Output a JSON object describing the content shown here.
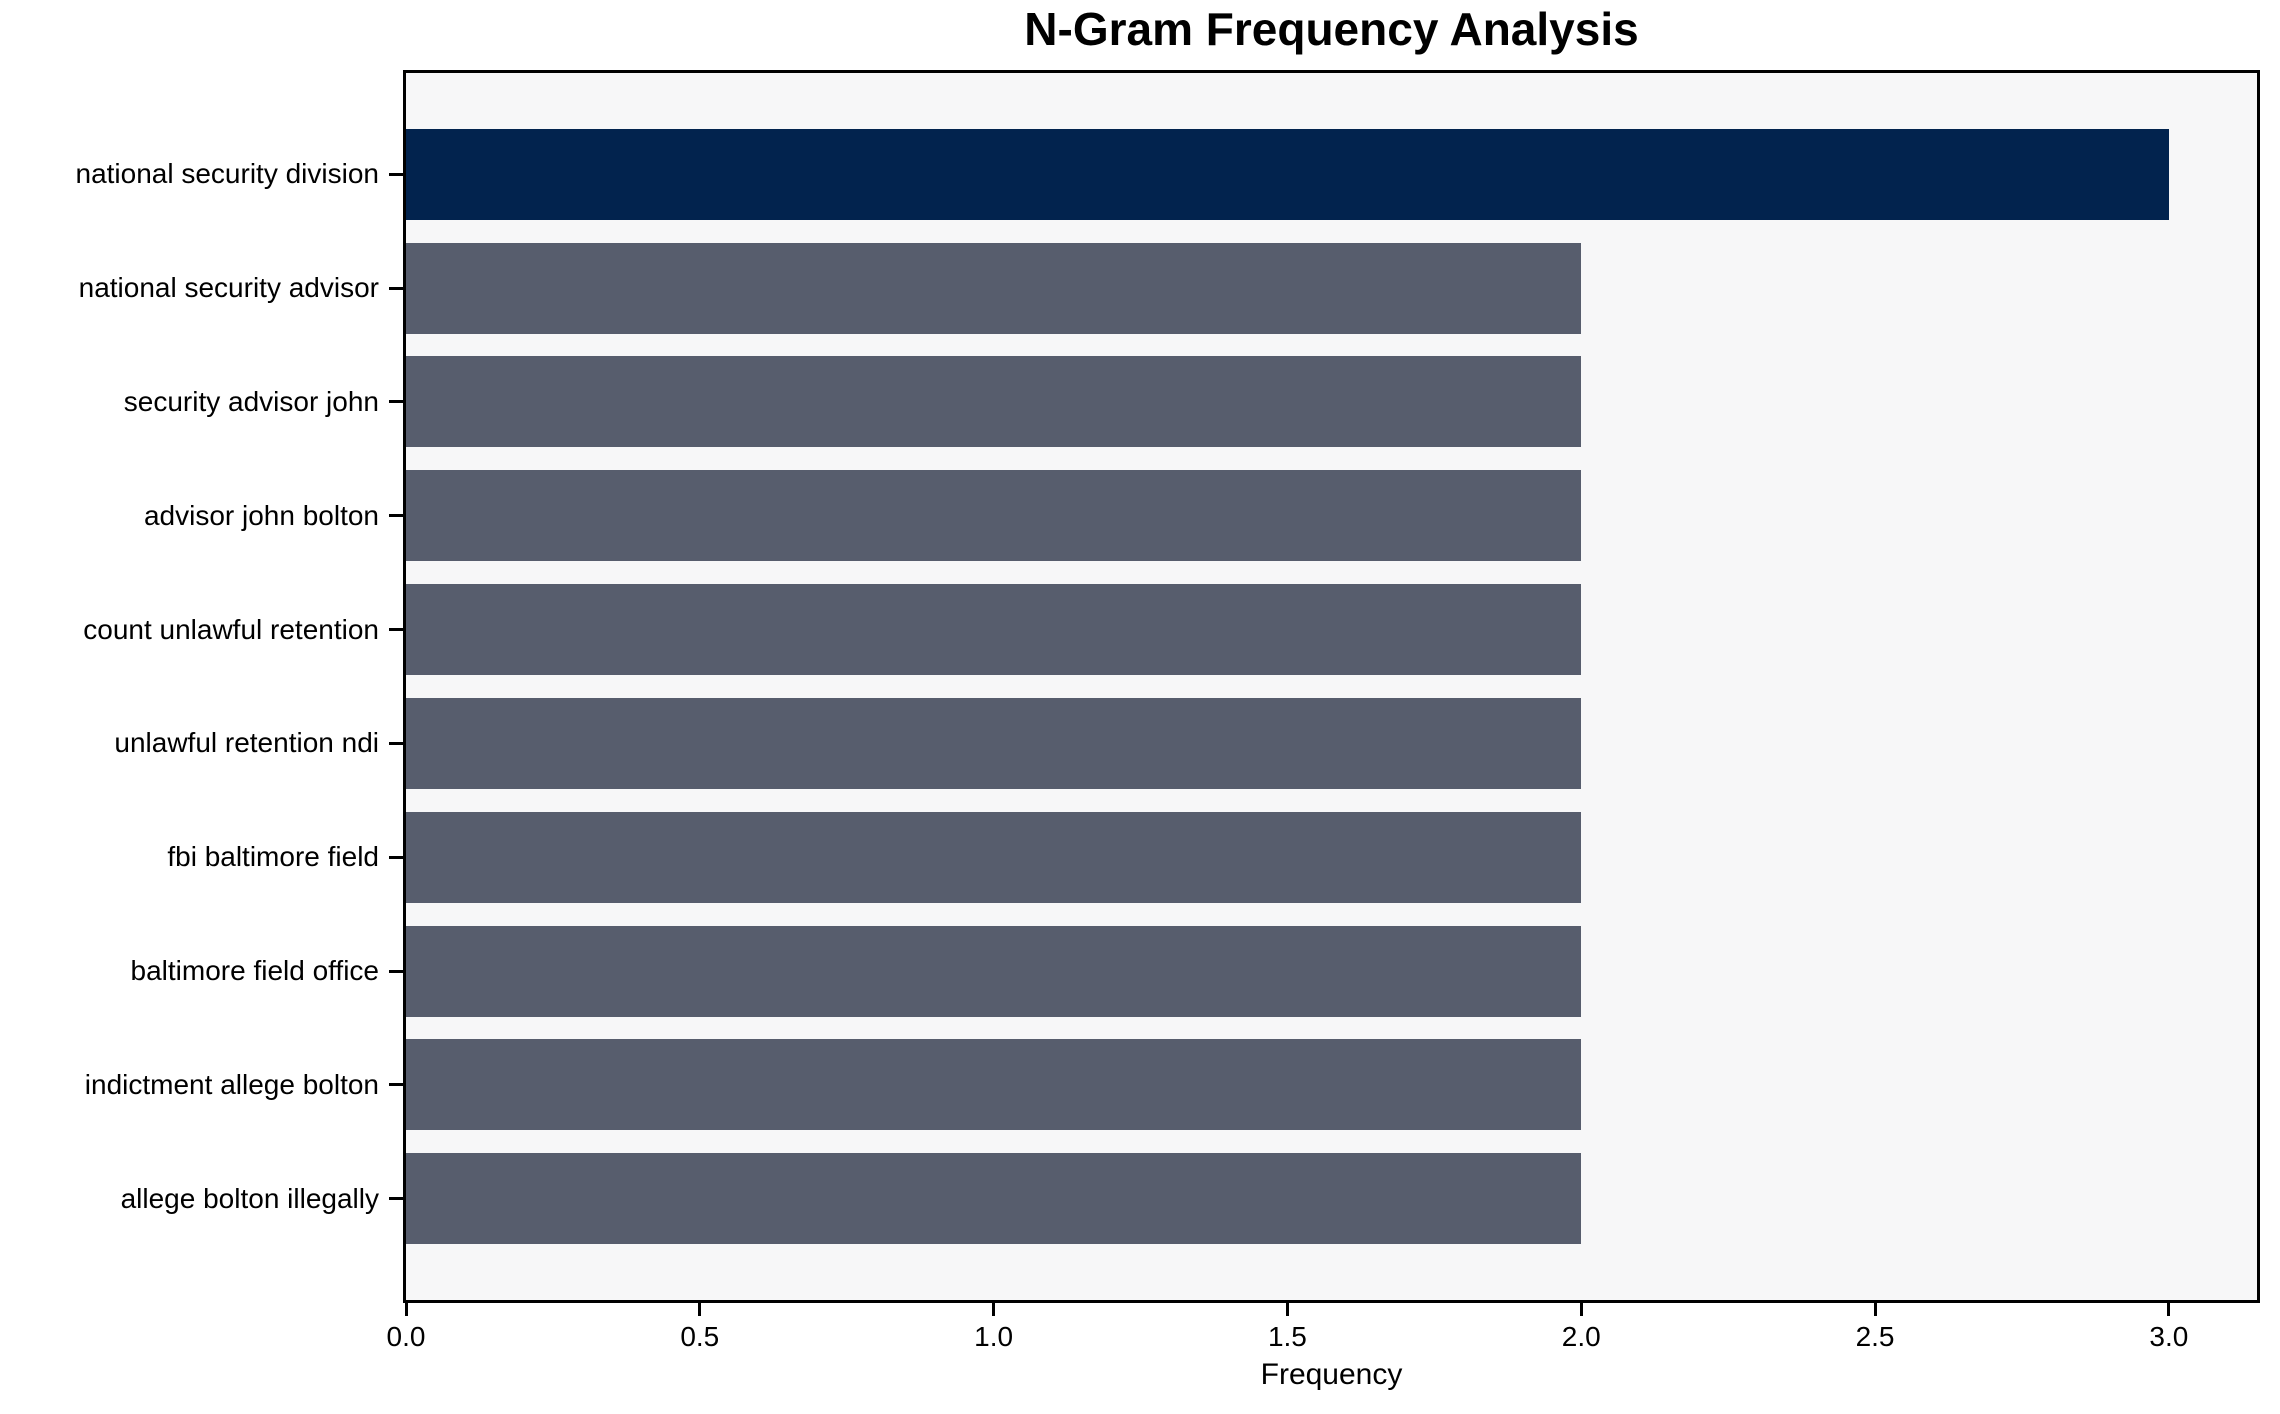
{
  "chart_data": {
    "type": "bar",
    "orientation": "horizontal",
    "title": "N-Gram Frequency Analysis",
    "xlabel": "Frequency",
    "ylabel": "",
    "categories": [
      "national security division",
      "national security advisor",
      "security advisor john",
      "advisor john bolton",
      "count unlawful retention",
      "unlawful retention ndi",
      "fbi baltimore field",
      "baltimore field office",
      "indictment allege bolton",
      "allege bolton illegally"
    ],
    "values": [
      3,
      2,
      2,
      2,
      2,
      2,
      2,
      2,
      2,
      2
    ],
    "bar_colors": [
      "#02234e",
      "#575d6d",
      "#575d6d",
      "#575d6d",
      "#575d6d",
      "#575d6d",
      "#575d6d",
      "#575d6d",
      "#575d6d",
      "#575d6d"
    ],
    "xlim": [
      0,
      3.15
    ],
    "xticks": [
      {
        "value": 0.0,
        "label": "0.0"
      },
      {
        "value": 0.5,
        "label": "0.5"
      },
      {
        "value": 1.0,
        "label": "1.0"
      },
      {
        "value": 1.5,
        "label": "1.5"
      },
      {
        "value": 2.0,
        "label": "2.0"
      },
      {
        "value": 2.5,
        "label": "2.5"
      },
      {
        "value": 3.0,
        "label": "3.0"
      }
    ],
    "bar_height_fraction": 0.8,
    "grid": false,
    "legend": null
  },
  "colors": {
    "highlight_bar": "#02234e",
    "default_bar": "#575d6d",
    "plot_background": "#f7f7f8",
    "page_background": "#ffffff",
    "spine": "#000000",
    "text": "#000000"
  }
}
